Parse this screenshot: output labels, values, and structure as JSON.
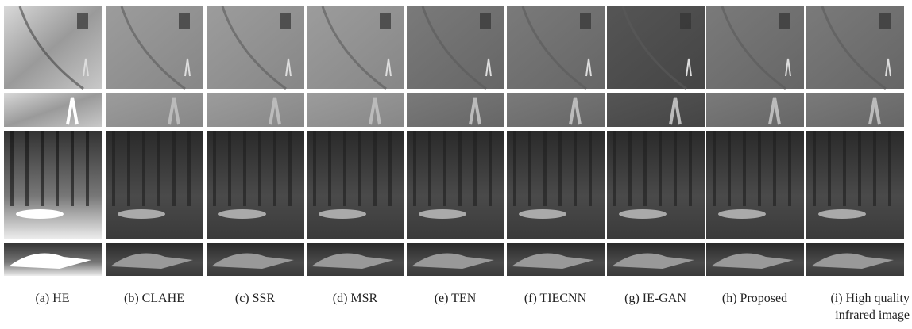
{
  "figure": {
    "captions": [
      "(a) HE",
      "(b) CLAHE",
      "(c) SSR",
      "(d) MSR",
      "(e) TEN",
      "(f) TIECNN",
      "(g) IE-GAN",
      "(h) Proposed",
      "(i) High quality infrared image"
    ]
  }
}
